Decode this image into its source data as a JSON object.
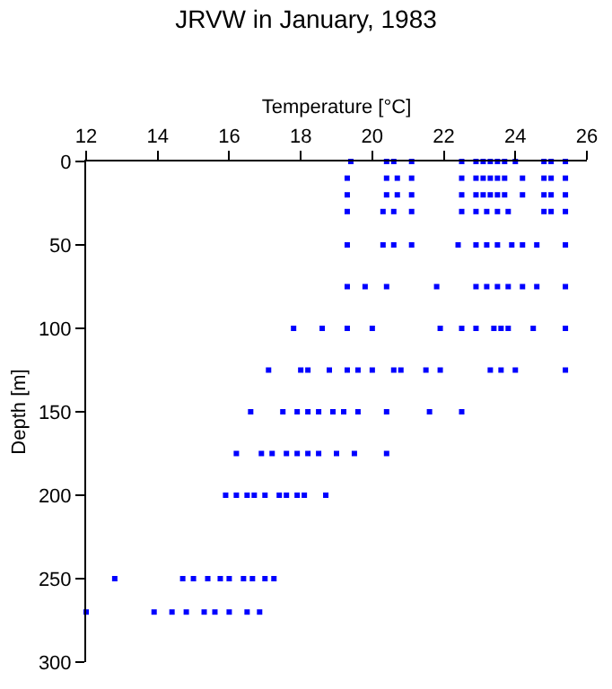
{
  "chart_data": {
    "type": "scatter",
    "title": "JRVW in January, 1983",
    "xlabel": "Temperature [°C]",
    "ylabel": "Depth [m]",
    "xlim": [
      12,
      26
    ],
    "xticks": [
      12,
      14,
      16,
      18,
      20,
      22,
      24,
      26
    ],
    "ylim": [
      300,
      0
    ],
    "yticks": [
      0,
      50,
      100,
      150,
      200,
      250,
      300
    ],
    "grid": false,
    "marker": "square",
    "series": [
      {
        "color": "#0000ff",
        "x": [
          19.4,
          20.4,
          20.6,
          21.1,
          22.5,
          22.9,
          23.1,
          23.3,
          23.5,
          23.7,
          24.0,
          24.8,
          25.0,
          25.4,
          19.3,
          20.4,
          20.7,
          21.1,
          22.5,
          22.9,
          23.1,
          23.3,
          23.5,
          23.7,
          24.2,
          24.8,
          25.0,
          25.4,
          19.3,
          20.4,
          20.7,
          21.1,
          22.5,
          22.9,
          23.1,
          23.3,
          23.5,
          23.7,
          24.2,
          24.8,
          25.0,
          25.4,
          19.3,
          20.3,
          20.6,
          21.1,
          22.5,
          22.9,
          23.2,
          23.5,
          23.8,
          24.8,
          25.0,
          25.4,
          19.3,
          20.3,
          20.6,
          21.1,
          22.4,
          22.9,
          23.2,
          23.5,
          23.9,
          24.2,
          24.6,
          25.4,
          19.3,
          19.8,
          20.4,
          21.8,
          22.9,
          23.2,
          23.5,
          23.8,
          24.2,
          24.6,
          25.4,
          17.8,
          18.6,
          19.3,
          20.0,
          21.9,
          22.5,
          22.9,
          23.4,
          23.6,
          23.8,
          24.5,
          25.4,
          17.1,
          18.0,
          18.2,
          18.8,
          19.3,
          19.6,
          20.0,
          20.6,
          20.8,
          21.5,
          21.9,
          23.3,
          23.6,
          24.0,
          25.4,
          16.6,
          17.5,
          17.9,
          18.2,
          18.5,
          18.9,
          19.2,
          19.6,
          20.4,
          21.6,
          22.5,
          16.2,
          16.9,
          17.2,
          17.6,
          17.9,
          18.2,
          18.5,
          19.0,
          19.5,
          20.4,
          15.9,
          16.2,
          16.5,
          16.7,
          17.0,
          17.4,
          17.6,
          17.9,
          18.1,
          18.7,
          12.8,
          14.7,
          15.0,
          15.4,
          15.75,
          16.0,
          16.4,
          16.65,
          17.0,
          17.25,
          12.0,
          13.9,
          14.4,
          14.8,
          15.3,
          15.6,
          16.0,
          16.5,
          16.85
        ],
        "values": [
          0,
          0,
          0,
          0,
          0,
          0,
          0,
          0,
          0,
          0,
          0,
          0,
          0,
          0,
          10,
          10,
          10,
          10,
          10,
          10,
          10,
          10,
          10,
          10,
          10,
          10,
          10,
          10,
          20,
          20,
          20,
          20,
          20,
          20,
          20,
          20,
          20,
          20,
          20,
          20,
          20,
          20,
          30,
          30,
          30,
          30,
          30,
          30,
          30,
          30,
          30,
          30,
          30,
          30,
          50,
          50,
          50,
          50,
          50,
          50,
          50,
          50,
          50,
          50,
          50,
          50,
          75,
          75,
          75,
          75,
          75,
          75,
          75,
          75,
          75,
          75,
          75,
          100,
          100,
          100,
          100,
          100,
          100,
          100,
          100,
          100,
          100,
          100,
          100,
          125,
          125,
          125,
          125,
          125,
          125,
          125,
          125,
          125,
          125,
          125,
          125,
          125,
          125,
          125,
          150,
          150,
          150,
          150,
          150,
          150,
          150,
          150,
          150,
          150,
          150,
          175,
          175,
          175,
          175,
          175,
          175,
          175,
          175,
          175,
          175,
          200,
          200,
          200,
          200,
          200,
          200,
          200,
          200,
          200,
          200,
          250,
          250,
          250,
          250,
          250,
          250,
          250,
          250,
          250,
          250,
          270,
          270,
          270,
          270,
          270,
          270,
          270,
          270,
          270
        ]
      }
    ]
  }
}
